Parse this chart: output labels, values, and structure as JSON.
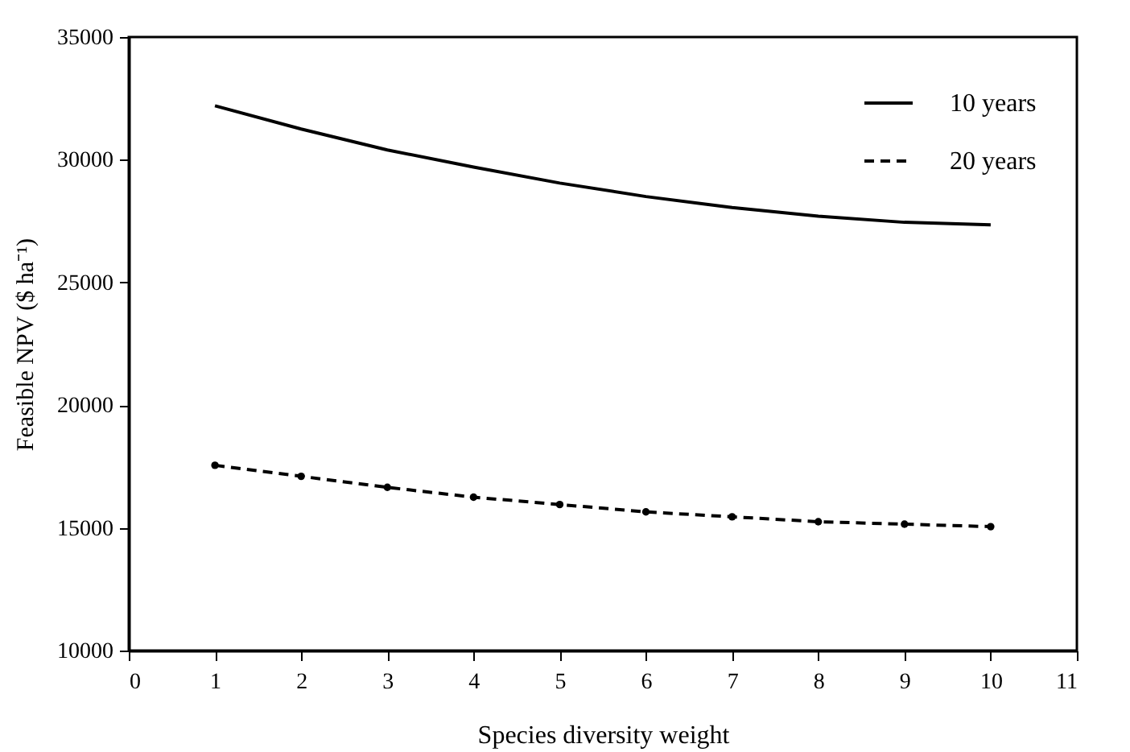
{
  "chart_data": {
    "type": "line",
    "xlabel": "Species diversity weight",
    "ylabel": "Feasible NPV ($ ha⁻¹)",
    "x": [
      1,
      2,
      3,
      4,
      5,
      6,
      7,
      8,
      9,
      10
    ],
    "series": [
      {
        "name": "10 years",
        "color": "#000000",
        "line_style": "solid",
        "marker": "none",
        "values": [
          32200,
          31250,
          30400,
          29700,
          29050,
          28500,
          28050,
          27700,
          27450,
          27350
        ]
      },
      {
        "name": "20 years",
        "color": "#000000",
        "line_style": "dashed",
        "marker": "circle",
        "values": [
          17550,
          17100,
          16650,
          16250,
          15950,
          15650,
          15450,
          15250,
          15150,
          15050
        ]
      }
    ],
    "xlim": [
      0,
      11
    ],
    "xticks": [
      0,
      1,
      2,
      3,
      4,
      5,
      6,
      7,
      8,
      9,
      10,
      11
    ],
    "ylim": [
      10000,
      35000
    ],
    "yticks": [
      10000,
      15000,
      20000,
      25000,
      30000,
      35000
    ],
    "grid": false,
    "legend": "top right"
  }
}
